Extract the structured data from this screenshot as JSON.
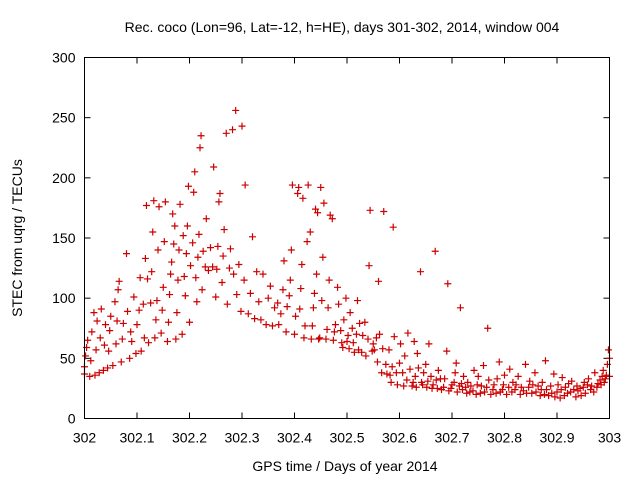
{
  "chart_data": {
    "type": "scatter",
    "title": "Rec. coco (Lon=96, Lat=-12, h=HE), days 301-302, 2014, window 004",
    "xlabel": "GPS time / Days of year 2014",
    "ylabel": "STEC from uqrg / TECUs",
    "xlim": [
      302,
      303
    ],
    "ylim": [
      0,
      300
    ],
    "xticks": [
      "302",
      "302.1",
      "302.2",
      "302.3",
      "302.4",
      "302.5",
      "302.6",
      "302.7",
      "302.8",
      "302.9",
      "303"
    ],
    "yticks": [
      "0",
      "50",
      "100",
      "150",
      "200",
      "250",
      "300"
    ],
    "grid": false,
    "marker": "plus",
    "color": "#cc0000",
    "points": [
      [
        302.0,
        37
      ],
      [
        302.0,
        43
      ],
      [
        302.002,
        52
      ],
      [
        302.004,
        59
      ],
      [
        302.006,
        65
      ],
      [
        302.01,
        35
      ],
      [
        302.012,
        48
      ],
      [
        302.014,
        72
      ],
      [
        302.018,
        88
      ],
      [
        302.02,
        36
      ],
      [
        302.022,
        57
      ],
      [
        302.024,
        81
      ],
      [
        302.028,
        38
      ],
      [
        302.03,
        67
      ],
      [
        302.032,
        91
      ],
      [
        302.036,
        40
      ],
      [
        302.038,
        61
      ],
      [
        302.04,
        78
      ],
      [
        302.044,
        42
      ],
      [
        302.046,
        56
      ],
      [
        302.048,
        73
      ],
      [
        302.05,
        85
      ],
      [
        302.054,
        44
      ],
      [
        302.058,
        97
      ],
      [
        302.06,
        62
      ],
      [
        302.062,
        81
      ],
      [
        302.064,
        107
      ],
      [
        302.066,
        114
      ],
      [
        302.07,
        47
      ],
      [
        302.072,
        66
      ],
      [
        302.074,
        79
      ],
      [
        302.08,
        137
      ],
      [
        302.082,
        89
      ],
      [
        302.086,
        50
      ],
      [
        302.088,
        72
      ],
      [
        302.09,
        64
      ],
      [
        302.094,
        101
      ],
      [
        302.098,
        54
      ],
      [
        302.1,
        78
      ],
      [
        302.104,
        90
      ],
      [
        302.106,
        117
      ],
      [
        302.108,
        56
      ],
      [
        302.112,
        95
      ],
      [
        302.114,
        67
      ],
      [
        302.116,
        133
      ],
      [
        302.118,
        177
      ],
      [
        302.12,
        116
      ],
      [
        302.122,
        63
      ],
      [
        302.126,
        96
      ],
      [
        302.128,
        122
      ],
      [
        302.13,
        155
      ],
      [
        302.132,
        181
      ],
      [
        302.134,
        67
      ],
      [
        302.136,
        82
      ],
      [
        302.138,
        98
      ],
      [
        302.14,
        140
      ],
      [
        302.142,
        176
      ],
      [
        302.146,
        71
      ],
      [
        302.148,
        90
      ],
      [
        302.15,
        109
      ],
      [
        302.152,
        147
      ],
      [
        302.154,
        180
      ],
      [
        302.158,
        64
      ],
      [
        302.16,
        80
      ],
      [
        302.162,
        103
      ],
      [
        302.164,
        120
      ],
      [
        302.166,
        130
      ],
      [
        302.168,
        170
      ],
      [
        302.17,
        145
      ],
      [
        302.172,
        160
      ],
      [
        302.174,
        66
      ],
      [
        302.176,
        88
      ],
      [
        302.178,
        115
      ],
      [
        302.18,
        140
      ],
      [
        302.182,
        178
      ],
      [
        302.186,
        70
      ],
      [
        302.188,
        152
      ],
      [
        302.19,
        118
      ],
      [
        302.192,
        102
      ],
      [
        302.194,
        137
      ],
      [
        302.196,
        160
      ],
      [
        302.198,
        193
      ],
      [
        302.2,
        80
      ],
      [
        302.202,
        127
      ],
      [
        302.206,
        146
      ],
      [
        302.208,
        188
      ],
      [
        302.21,
        205
      ],
      [
        302.212,
        117
      ],
      [
        302.214,
        97
      ],
      [
        302.216,
        134
      ],
      [
        302.218,
        153
      ],
      [
        302.22,
        225
      ],
      [
        302.222,
        235
      ],
      [
        302.224,
        107
      ],
      [
        302.226,
        139
      ],
      [
        302.23,
        126
      ],
      [
        302.232,
        166
      ],
      [
        302.236,
        123
      ],
      [
        302.24,
        142
      ],
      [
        302.244,
        126
      ],
      [
        302.246,
        209
      ],
      [
        302.25,
        101
      ],
      [
        302.252,
        124
      ],
      [
        302.254,
        143
      ],
      [
        302.256,
        180
      ],
      [
        302.258,
        187
      ],
      [
        302.262,
        113
      ],
      [
        302.264,
        135
      ],
      [
        302.266,
        157
      ],
      [
        302.27,
        237
      ],
      [
        302.272,
        95
      ],
      [
        302.276,
        125
      ],
      [
        302.278,
        141
      ],
      [
        302.282,
        240
      ],
      [
        302.284,
        120
      ],
      [
        302.288,
        256
      ],
      [
        302.29,
        103
      ],
      [
        302.294,
        128
      ],
      [
        302.298,
        89
      ],
      [
        302.3,
        243
      ],
      [
        302.304,
        115
      ],
      [
        302.306,
        194
      ],
      [
        302.312,
        87
      ],
      [
        302.316,
        104
      ],
      [
        302.32,
        151
      ],
      [
        302.324,
        83
      ],
      [
        302.328,
        122
      ],
      [
        302.332,
        97
      ],
      [
        302.336,
        82
      ],
      [
        302.34,
        120
      ],
      [
        302.346,
        78
      ],
      [
        302.35,
        100
      ],
      [
        302.354,
        110
      ],
      [
        302.358,
        77
      ],
      [
        302.362,
        92
      ],
      [
        302.368,
        96
      ],
      [
        302.37,
        78
      ],
      [
        302.374,
        87
      ],
      [
        302.378,
        107
      ],
      [
        302.38,
        131
      ],
      [
        302.384,
        72
      ],
      [
        302.386,
        93
      ],
      [
        302.39,
        102
      ],
      [
        302.392,
        115
      ],
      [
        302.394,
        140
      ],
      [
        302.396,
        194
      ],
      [
        302.4,
        70
      ],
      [
        302.402,
        85
      ],
      [
        302.406,
        187
      ],
      [
        302.408,
        192
      ],
      [
        302.41,
        91
      ],
      [
        302.412,
        108
      ],
      [
        302.414,
        128
      ],
      [
        302.416,
        183
      ],
      [
        302.418,
        67
      ],
      [
        302.42,
        77
      ],
      [
        302.424,
        147
      ],
      [
        302.426,
        194
      ],
      [
        302.43,
        155
      ],
      [
        302.432,
        66
      ],
      [
        302.434,
        77
      ],
      [
        302.436,
        92
      ],
      [
        302.438,
        104
      ],
      [
        302.44,
        174
      ],
      [
        302.442,
        120
      ],
      [
        302.444,
        171
      ],
      [
        302.446,
        66
      ],
      [
        302.448,
        67
      ],
      [
        302.45,
        192
      ],
      [
        302.452,
        98
      ],
      [
        302.454,
        134
      ],
      [
        302.456,
        179
      ],
      [
        302.46,
        66
      ],
      [
        302.462,
        74
      ],
      [
        302.464,
        92
      ],
      [
        302.466,
        115
      ],
      [
        302.468,
        169
      ],
      [
        302.472,
        166
      ],
      [
        302.474,
        65
      ],
      [
        302.476,
        72
      ],
      [
        302.478,
        78
      ],
      [
        302.482,
        109
      ],
      [
        302.484,
        95
      ],
      [
        302.488,
        73
      ],
      [
        302.49,
        63
      ],
      [
        302.492,
        59
      ],
      [
        302.494,
        82
      ],
      [
        302.498,
        100
      ],
      [
        302.5,
        64
      ],
      [
        302.502,
        69
      ],
      [
        302.504,
        58
      ],
      [
        302.506,
        88
      ],
      [
        302.51,
        75
      ],
      [
        302.512,
        63
      ],
      [
        302.514,
        55
      ],
      [
        302.518,
        70
      ],
      [
        302.52,
        98
      ],
      [
        302.522,
        57
      ],
      [
        302.524,
        79
      ],
      [
        302.528,
        55
      ],
      [
        302.53,
        69
      ],
      [
        302.534,
        80
      ],
      [
        302.536,
        52
      ],
      [
        302.54,
        66
      ],
      [
        302.542,
        127
      ],
      [
        302.544,
        173
      ],
      [
        302.548,
        56
      ],
      [
        302.55,
        62
      ],
      [
        302.552,
        57
      ],
      [
        302.556,
        67
      ],
      [
        302.558,
        47
      ],
      [
        302.56,
        114
      ],
      [
        302.562,
        70
      ],
      [
        302.566,
        38
      ],
      [
        302.568,
        58
      ],
      [
        302.57,
        172
      ],
      [
        302.574,
        45
      ],
      [
        302.576,
        37
      ],
      [
        302.58,
        57
      ],
      [
        302.582,
        36
      ],
      [
        302.584,
        30
      ],
      [
        302.586,
        43
      ],
      [
        302.588,
        159
      ],
      [
        302.59,
        68
      ],
      [
        302.594,
        38
      ],
      [
        302.596,
        28
      ],
      [
        302.6,
        46
      ],
      [
        302.602,
        62
      ],
      [
        302.606,
        38
      ],
      [
        302.608,
        27
      ],
      [
        302.61,
        52
      ],
      [
        302.614,
        32
      ],
      [
        302.616,
        71
      ],
      [
        302.62,
        41
      ],
      [
        302.624,
        27
      ],
      [
        302.626,
        30
      ],
      [
        302.628,
        64
      ],
      [
        302.63,
        35
      ],
      [
        302.632,
        26
      ],
      [
        302.634,
        54
      ],
      [
        302.636,
        42
      ],
      [
        302.64,
        122
      ],
      [
        302.642,
        30
      ],
      [
        302.644,
        28
      ],
      [
        302.646,
        38
      ],
      [
        302.65,
        45
      ],
      [
        302.652,
        26
      ],
      [
        302.654,
        31
      ],
      [
        302.656,
        62
      ],
      [
        302.66,
        35
      ],
      [
        302.662,
        25
      ],
      [
        302.664,
        28
      ],
      [
        302.668,
        139
      ],
      [
        302.67,
        32
      ],
      [
        302.672,
        25
      ],
      [
        302.674,
        40
      ],
      [
        302.678,
        33
      ],
      [
        302.68,
        24
      ],
      [
        302.684,
        26
      ],
      [
        302.686,
        33
      ],
      [
        302.69,
        56
      ],
      [
        302.692,
        112
      ],
      [
        302.694,
        23
      ],
      [
        302.698,
        25
      ],
      [
        302.7,
        28
      ],
      [
        302.704,
        30
      ],
      [
        302.706,
        38
      ],
      [
        302.708,
        46
      ],
      [
        302.71,
        22
      ],
      [
        302.714,
        27
      ],
      [
        302.716,
        92
      ],
      [
        302.718,
        29
      ],
      [
        302.72,
        24
      ],
      [
        302.722,
        35
      ],
      [
        302.726,
        26
      ],
      [
        302.728,
        21
      ],
      [
        302.73,
        30
      ],
      [
        302.734,
        22
      ],
      [
        302.736,
        27
      ],
      [
        302.74,
        23
      ],
      [
        302.742,
        40
      ],
      [
        302.746,
        20
      ],
      [
        302.748,
        28
      ],
      [
        302.75,
        35
      ],
      [
        302.754,
        21
      ],
      [
        302.756,
        27
      ],
      [
        302.76,
        44
      ],
      [
        302.762,
        22
      ],
      [
        302.766,
        26
      ],
      [
        302.768,
        75
      ],
      [
        302.77,
        32
      ],
      [
        302.774,
        20
      ],
      [
        302.778,
        24
      ],
      [
        302.78,
        28
      ],
      [
        302.784,
        21
      ],
      [
        302.786,
        33
      ],
      [
        302.79,
        47
      ],
      [
        302.792,
        22
      ],
      [
        302.796,
        24
      ],
      [
        302.798,
        28
      ],
      [
        302.8,
        36
      ],
      [
        302.804,
        20
      ],
      [
        302.808,
        26
      ],
      [
        302.81,
        41
      ],
      [
        302.814,
        22
      ],
      [
        302.816,
        30
      ],
      [
        302.82,
        24
      ],
      [
        302.822,
        28
      ],
      [
        302.826,
        35
      ],
      [
        302.83,
        20
      ],
      [
        302.832,
        26
      ],
      [
        302.836,
        23
      ],
      [
        302.84,
        45
      ],
      [
        302.842,
        21
      ],
      [
        302.846,
        26
      ],
      [
        302.848,
        31
      ],
      [
        302.852,
        21
      ],
      [
        302.854,
        28
      ],
      [
        302.858,
        38
      ],
      [
        302.86,
        22
      ],
      [
        302.864,
        27
      ],
      [
        302.868,
        19
      ],
      [
        302.87,
        24
      ],
      [
        302.872,
        30
      ],
      [
        302.876,
        20
      ],
      [
        302.878,
        48
      ],
      [
        302.88,
        24
      ],
      [
        302.884,
        19
      ],
      [
        302.888,
        27
      ],
      [
        302.89,
        21
      ],
      [
        302.894,
        37
      ],
      [
        302.896,
        18
      ],
      [
        302.9,
        22
      ],
      [
        302.902,
        28
      ],
      [
        302.906,
        17
      ],
      [
        302.908,
        24
      ],
      [
        302.91,
        34
      ],
      [
        302.914,
        19
      ],
      [
        302.916,
        26
      ],
      [
        302.92,
        21
      ],
      [
        302.922,
        29
      ],
      [
        302.926,
        22
      ],
      [
        302.928,
        31
      ],
      [
        302.932,
        24
      ],
      [
        302.936,
        18
      ],
      [
        302.938,
        27
      ],
      [
        302.94,
        23
      ],
      [
        302.944,
        25
      ],
      [
        302.946,
        19
      ],
      [
        302.95,
        26
      ],
      [
        302.952,
        30
      ],
      [
        302.954,
        21
      ],
      [
        302.958,
        28
      ],
      [
        302.96,
        33
      ],
      [
        302.964,
        24
      ],
      [
        302.966,
        27
      ],
      [
        302.97,
        22
      ],
      [
        302.972,
        38
      ],
      [
        302.976,
        26
      ],
      [
        302.978,
        29
      ],
      [
        302.982,
        32
      ],
      [
        302.984,
        28
      ],
      [
        302.986,
        35
      ],
      [
        302.988,
        40
      ],
      [
        302.99,
        30
      ],
      [
        302.992,
        33
      ],
      [
        302.994,
        36
      ],
      [
        302.996,
        45
      ],
      [
        302.998,
        57
      ],
      [
        303.0,
        35
      ],
      [
        303.0,
        50
      ]
    ]
  }
}
